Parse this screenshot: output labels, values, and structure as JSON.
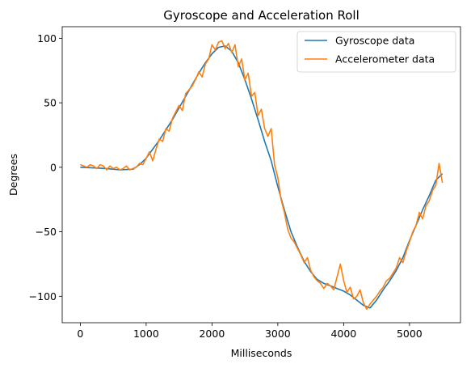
{
  "chart_data": {
    "type": "line",
    "title": "Gyroscope and Acceleration Roll",
    "xlabel": "Milliseconds",
    "ylabel": "Degrees",
    "xlim": [
      -275,
      5775
    ],
    "ylim": [
      -120.5,
      109
    ],
    "xticks": [
      0,
      1000,
      2000,
      3000,
      4000,
      5000
    ],
    "xtick_labels": [
      "0",
      "1000",
      "2000",
      "3000",
      "4000",
      "5000"
    ],
    "yticks": [
      -100,
      -50,
      0,
      50,
      100
    ],
    "ytick_labels": [
      "−100",
      "−50",
      "0",
      "50",
      "100"
    ],
    "grid": false,
    "legend_position": "top-right",
    "series": [
      {
        "name": "Gyroscope data",
        "color": "#1f77b4",
        "x": [
          0,
          200,
          400,
          600,
          800,
          900,
          1000,
          1100,
          1200,
          1300,
          1400,
          1500,
          1600,
          1700,
          1800,
          1900,
          2000,
          2100,
          2200,
          2300,
          2400,
          2500,
          2600,
          2700,
          2800,
          2900,
          3000,
          3100,
          3200,
          3300,
          3400,
          3500,
          3600,
          3700,
          3800,
          3900,
          4000,
          4100,
          4200,
          4300,
          4400,
          4500,
          4600,
          4700,
          4800,
          4900,
          5000,
          5100,
          5200,
          5300,
          5400,
          5500
        ],
        "y": [
          0,
          -0.5,
          -1,
          -2,
          -1.5,
          2,
          7,
          14,
          21,
          29,
          37,
          46,
          55,
          64,
          73,
          81,
          88,
          93,
          94,
          90,
          81,
          68,
          53,
          37,
          20,
          5,
          -15,
          -33,
          -50,
          -62,
          -73,
          -81,
          -87,
          -90,
          -92,
          -94,
          -96,
          -99,
          -103,
          -107,
          -109,
          -103,
          -95,
          -88,
          -80,
          -70,
          -57,
          -45,
          -33,
          -22,
          -10,
          -5
        ]
      },
      {
        "name": "Accelerometer data",
        "color": "#ff7f0e",
        "x": [
          0,
          50,
          100,
          150,
          200,
          250,
          300,
          350,
          400,
          450,
          500,
          550,
          600,
          650,
          700,
          750,
          800,
          850,
          900,
          950,
          1000,
          1050,
          1100,
          1150,
          1200,
          1250,
          1300,
          1350,
          1400,
          1450,
          1500,
          1550,
          1600,
          1650,
          1700,
          1750,
          1800,
          1850,
          1900,
          1950,
          2000,
          2050,
          2100,
          2150,
          2200,
          2250,
          2300,
          2350,
          2400,
          2450,
          2500,
          2550,
          2600,
          2650,
          2700,
          2750,
          2800,
          2850,
          2900,
          2950,
          3000,
          3050,
          3100,
          3150,
          3200,
          3250,
          3300,
          3350,
          3400,
          3450,
          3500,
          3550,
          3600,
          3650,
          3700,
          3750,
          3800,
          3850,
          3900,
          3950,
          4000,
          4050,
          4100,
          4150,
          4200,
          4250,
          4300,
          4350,
          4400,
          4450,
          4500,
          4550,
          4600,
          4650,
          4700,
          4750,
          4800,
          4850,
          4900,
          4950,
          5000,
          5050,
          5100,
          5150,
          5200,
          5250,
          5300,
          5350,
          5400,
          5450,
          5500
        ],
        "y": [
          2,
          1,
          0,
          2,
          1,
          -1,
          2,
          1,
          -2,
          1,
          -1,
          0,
          -2,
          -1,
          1,
          -2,
          -1,
          0,
          3,
          2,
          7,
          12,
          5,
          14,
          22,
          20,
          30,
          28,
          38,
          43,
          48,
          44,
          57,
          60,
          63,
          68,
          74,
          70,
          80,
          84,
          95,
          91,
          97,
          98,
          92,
          96,
          89,
          95,
          78,
          84,
          68,
          73,
          55,
          58,
          40,
          45,
          30,
          24,
          30,
          2,
          -8,
          -25,
          -35,
          -48,
          -55,
          -58,
          -63,
          -68,
          -74,
          -70,
          -80,
          -85,
          -88,
          -90,
          -94,
          -90,
          -92,
          -95,
          -85,
          -75,
          -88,
          -97,
          -93,
          -102,
          -100,
          -95,
          -105,
          -110,
          -106,
          -103,
          -100,
          -96,
          -93,
          -88,
          -86,
          -82,
          -78,
          -70,
          -74,
          -65,
          -58,
          -50,
          -45,
          -35,
          -40,
          -30,
          -26,
          -18,
          -14,
          3,
          -12
        ]
      }
    ]
  }
}
